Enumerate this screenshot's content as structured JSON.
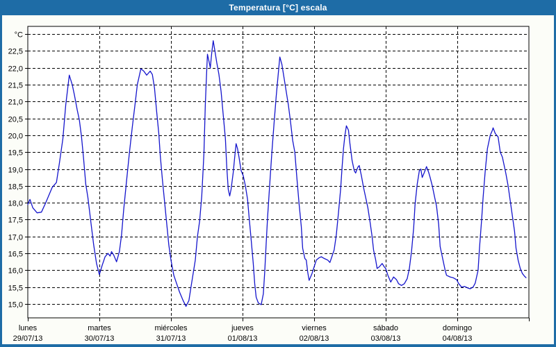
{
  "window": {
    "title": "Temperatura [°C] escala"
  },
  "colors": {
    "title_bar": "#1e6ca6",
    "window_border": "#1e6ca6",
    "page_background": "#fcfdf8",
    "plot_background": "#ffffff",
    "grid": "#000000",
    "text": "#000000",
    "line": "#1414cc"
  },
  "chart_data": {
    "type": "line",
    "title": "Temperatura [°C] escala",
    "ylabel": "°C",
    "legend": "none",
    "grid": "dashed",
    "y_axis": {
      "min": 15.0,
      "max": 23.0,
      "step": 0.5,
      "unit_label_at_top": "°C",
      "decimal_separator": ",",
      "tick_labels": [
        "22,5",
        "22,0",
        "21,5",
        "21,0",
        "20,5",
        "20,0",
        "19,5",
        "19,0",
        "18,5",
        "18,0",
        "17,5",
        "17,0",
        "16,5",
        "16,0",
        "15,5",
        "15,0"
      ]
    },
    "x_axis": {
      "unit": "days",
      "categories": [
        {
          "day": "lunes",
          "date": "29/07/13"
        },
        {
          "day": "martes",
          "date": "30/07/13"
        },
        {
          "day": "miércoles",
          "date": "31/07/13"
        },
        {
          "day": "jueves",
          "date": "01/08/13"
        },
        {
          "day": "viernes",
          "date": "02/08/13"
        },
        {
          "day": "sábado",
          "date": "03/08/13"
        },
        {
          "day": "domingo",
          "date": "04/08/13"
        }
      ]
    },
    "series": [
      {
        "name": "Temperatura",
        "color": "#1414cc",
        "x_unit": "day_fraction",
        "points": [
          [
            0.0,
            17.95
          ],
          [
            0.03,
            18.1
          ],
          [
            0.07,
            17.85
          ],
          [
            0.13,
            17.7
          ],
          [
            0.19,
            17.72
          ],
          [
            0.25,
            18.0
          ],
          [
            0.34,
            18.45
          ],
          [
            0.4,
            18.6
          ],
          [
            0.44,
            19.15
          ],
          [
            0.49,
            19.9
          ],
          [
            0.53,
            20.9
          ],
          [
            0.58,
            21.78
          ],
          [
            0.62,
            21.5
          ],
          [
            0.65,
            21.2
          ],
          [
            0.69,
            20.75
          ],
          [
            0.72,
            20.45
          ],
          [
            0.75,
            19.95
          ],
          [
            0.78,
            19.3
          ],
          [
            0.81,
            18.55
          ],
          [
            0.84,
            18.15
          ],
          [
            0.88,
            17.45
          ],
          [
            0.92,
            16.75
          ],
          [
            0.96,
            16.2
          ],
          [
            1.0,
            15.87
          ],
          [
            1.04,
            16.15
          ],
          [
            1.08,
            16.4
          ],
          [
            1.12,
            16.5
          ],
          [
            1.15,
            16.42
          ],
          [
            1.17,
            16.55
          ],
          [
            1.2,
            16.45
          ],
          [
            1.24,
            16.25
          ],
          [
            1.28,
            16.55
          ],
          [
            1.31,
            17.05
          ],
          [
            1.34,
            17.8
          ],
          [
            1.38,
            18.65
          ],
          [
            1.42,
            19.5
          ],
          [
            1.46,
            20.25
          ],
          [
            1.5,
            20.95
          ],
          [
            1.53,
            21.5
          ],
          [
            1.58,
            21.97
          ],
          [
            1.62,
            21.9
          ],
          [
            1.66,
            21.78
          ],
          [
            1.71,
            21.9
          ],
          [
            1.74,
            21.8
          ],
          [
            1.77,
            21.4
          ],
          [
            1.8,
            20.7
          ],
          [
            1.83,
            20.05
          ],
          [
            1.85,
            19.4
          ],
          [
            1.88,
            18.7
          ],
          [
            1.91,
            18.05
          ],
          [
            1.94,
            17.4
          ],
          [
            1.97,
            16.75
          ],
          [
            2.0,
            16.3
          ],
          [
            2.04,
            15.85
          ],
          [
            2.08,
            15.6
          ],
          [
            2.12,
            15.35
          ],
          [
            2.17,
            15.1
          ],
          [
            2.21,
            14.93
          ],
          [
            2.25,
            15.1
          ],
          [
            2.28,
            15.5
          ],
          [
            2.31,
            15.9
          ],
          [
            2.34,
            16.3
          ],
          [
            2.37,
            17.0
          ],
          [
            2.4,
            17.45
          ],
          [
            2.43,
            18.2
          ],
          [
            2.46,
            19.45
          ],
          [
            2.48,
            20.9
          ],
          [
            2.5,
            21.95
          ],
          [
            2.51,
            22.4
          ],
          [
            2.53,
            22.2
          ],
          [
            2.55,
            22.0
          ],
          [
            2.57,
            22.45
          ],
          [
            2.59,
            22.8
          ],
          [
            2.61,
            22.55
          ],
          [
            2.64,
            22.15
          ],
          [
            2.67,
            21.8
          ],
          [
            2.7,
            21.3
          ],
          [
            2.73,
            20.6
          ],
          [
            2.76,
            19.9
          ],
          [
            2.78,
            19.05
          ],
          [
            2.8,
            18.4
          ],
          [
            2.82,
            18.2
          ],
          [
            2.84,
            18.4
          ],
          [
            2.87,
            18.9
          ],
          [
            2.89,
            19.35
          ],
          [
            2.91,
            19.75
          ],
          [
            2.93,
            19.6
          ],
          [
            2.95,
            19.35
          ],
          [
            2.98,
            18.95
          ],
          [
            3.01,
            18.8
          ],
          [
            3.04,
            18.5
          ],
          [
            3.07,
            18.1
          ],
          [
            3.09,
            17.6
          ],
          [
            3.12,
            16.9
          ],
          [
            3.15,
            16.2
          ],
          [
            3.17,
            15.6
          ],
          [
            3.19,
            15.2
          ],
          [
            3.22,
            15.03
          ],
          [
            3.26,
            14.98
          ],
          [
            3.29,
            15.3
          ],
          [
            3.31,
            15.95
          ],
          [
            3.33,
            16.8
          ],
          [
            3.35,
            17.6
          ],
          [
            3.38,
            18.55
          ],
          [
            3.41,
            19.5
          ],
          [
            3.44,
            20.35
          ],
          [
            3.47,
            21.15
          ],
          [
            3.5,
            21.85
          ],
          [
            3.52,
            22.32
          ],
          [
            3.55,
            22.1
          ],
          [
            3.58,
            21.7
          ],
          [
            3.61,
            21.3
          ],
          [
            3.64,
            20.9
          ],
          [
            3.67,
            20.4
          ],
          [
            3.7,
            19.85
          ],
          [
            3.73,
            19.5
          ],
          [
            3.76,
            18.7
          ],
          [
            3.79,
            17.95
          ],
          [
            3.82,
            17.3
          ],
          [
            3.84,
            16.65
          ],
          [
            3.87,
            16.35
          ],
          [
            3.89,
            16.3
          ],
          [
            3.91,
            15.95
          ],
          [
            3.93,
            15.7
          ],
          [
            3.97,
            15.9
          ],
          [
            4.0,
            16.1
          ],
          [
            4.03,
            16.3
          ],
          [
            4.07,
            16.37
          ],
          [
            4.1,
            16.4
          ],
          [
            4.14,
            16.35
          ],
          [
            4.19,
            16.3
          ],
          [
            4.22,
            16.23
          ],
          [
            4.25,
            16.42
          ],
          [
            4.28,
            16.6
          ],
          [
            4.31,
            17.05
          ],
          [
            4.34,
            17.7
          ],
          [
            4.37,
            18.4
          ],
          [
            4.39,
            19.05
          ],
          [
            4.41,
            19.6
          ],
          [
            4.43,
            20.0
          ],
          [
            4.45,
            20.28
          ],
          [
            4.48,
            20.15
          ],
          [
            4.5,
            19.75
          ],
          [
            4.53,
            19.25
          ],
          [
            4.56,
            18.95
          ],
          [
            4.58,
            18.88
          ],
          [
            4.61,
            19.05
          ],
          [
            4.63,
            19.1
          ],
          [
            4.66,
            18.8
          ],
          [
            4.69,
            18.45
          ],
          [
            4.72,
            18.15
          ],
          [
            4.75,
            17.85
          ],
          [
            4.78,
            17.45
          ],
          [
            4.81,
            17.0
          ],
          [
            4.83,
            16.6
          ],
          [
            4.86,
            16.3
          ],
          [
            4.88,
            16.05
          ],
          [
            4.91,
            16.1
          ],
          [
            4.95,
            16.2
          ],
          [
            4.98,
            16.1
          ],
          [
            5.0,
            16.05
          ],
          [
            5.03,
            15.85
          ],
          [
            5.07,
            15.65
          ],
          [
            5.11,
            15.8
          ],
          [
            5.15,
            15.72
          ],
          [
            5.18,
            15.6
          ],
          [
            5.22,
            15.55
          ],
          [
            5.26,
            15.6
          ],
          [
            5.3,
            15.75
          ],
          [
            5.33,
            16.05
          ],
          [
            5.36,
            16.55
          ],
          [
            5.39,
            17.25
          ],
          [
            5.41,
            17.95
          ],
          [
            5.44,
            18.55
          ],
          [
            5.47,
            18.95
          ],
          [
            5.49,
            19.0
          ],
          [
            5.51,
            18.75
          ],
          [
            5.54,
            18.9
          ],
          [
            5.57,
            19.07
          ],
          [
            5.6,
            18.9
          ],
          [
            5.62,
            18.75
          ],
          [
            5.65,
            18.5
          ],
          [
            5.68,
            18.2
          ],
          [
            5.71,
            17.9
          ],
          [
            5.74,
            17.35
          ],
          [
            5.76,
            16.7
          ],
          [
            5.8,
            16.3
          ],
          [
            5.83,
            16.0
          ],
          [
            5.85,
            15.85
          ],
          [
            5.9,
            15.8
          ],
          [
            5.94,
            15.78
          ],
          [
            5.99,
            15.72
          ],
          [
            6.02,
            15.6
          ],
          [
            6.06,
            15.5
          ],
          [
            6.1,
            15.52
          ],
          [
            6.15,
            15.47
          ],
          [
            6.18,
            15.45
          ],
          [
            6.22,
            15.5
          ],
          [
            6.25,
            15.62
          ],
          [
            6.29,
            16.0
          ],
          [
            6.31,
            16.65
          ],
          [
            6.34,
            17.5
          ],
          [
            6.36,
            18.15
          ],
          [
            6.39,
            18.95
          ],
          [
            6.42,
            19.6
          ],
          [
            6.46,
            20.0
          ],
          [
            6.49,
            20.15
          ],
          [
            6.5,
            20.22
          ],
          [
            6.53,
            20.05
          ],
          [
            6.57,
            19.95
          ],
          [
            6.6,
            19.5
          ],
          [
            6.63,
            19.35
          ],
          [
            6.66,
            19.05
          ],
          [
            6.68,
            18.85
          ],
          [
            6.71,
            18.5
          ],
          [
            6.74,
            18.05
          ],
          [
            6.77,
            17.6
          ],
          [
            6.8,
            17.15
          ],
          [
            6.82,
            16.65
          ],
          [
            6.85,
            16.3
          ],
          [
            6.88,
            16.05
          ],
          [
            6.91,
            15.9
          ],
          [
            6.94,
            15.82
          ],
          [
            6.96,
            15.78
          ]
        ]
      }
    ]
  }
}
